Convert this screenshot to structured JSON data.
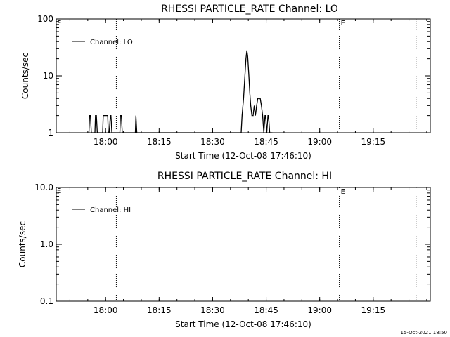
{
  "chart_data": [
    {
      "type": "line",
      "title": "RHESSI PARTICLE_RATE Channel: LO",
      "xlabel": "Start Time (12-Oct-08 17:46:10)",
      "ylabel": "Counts/sec",
      "y_scale": "log",
      "ylim": [
        1,
        100
      ],
      "xlim": [
        "17:46:10",
        "19:31:00"
      ],
      "x_ticks": [
        "18:00",
        "18:15",
        "18:30",
        "18:45",
        "19:00",
        "19:15"
      ],
      "y_ticks": [
        "1",
        "10",
        "100"
      ],
      "legend": "top-left",
      "series": [
        {
          "name": "Channel: LO",
          "x": [
            "17:55:20",
            "17:55:30",
            "17:55:45",
            "17:56:00",
            "17:56:10",
            "17:57:00",
            "17:57:10",
            "17:57:25",
            "17:57:40",
            "17:57:50",
            "17:59:10",
            "17:59:20",
            "17:59:35",
            "18:00:35",
            "18:00:45",
            "18:01:00",
            "18:01:20",
            "18:01:30",
            "18:01:45",
            "18:02:00",
            "18:04:00",
            "18:04:10",
            "18:04:25",
            "18:04:40",
            "18:08:20",
            "18:08:30",
            "18:08:45",
            "18:38:00",
            "18:38:15",
            "18:38:40",
            "18:39:00",
            "18:39:20",
            "18:39:35",
            "18:39:50",
            "18:40:10",
            "18:40:25",
            "18:40:40",
            "18:41:00",
            "18:41:20",
            "18:41:40",
            "18:42:00",
            "18:42:20",
            "18:42:40",
            "18:43:00",
            "18:43:20",
            "18:43:40",
            "18:44:00",
            "18:44:20",
            "18:44:40",
            "18:44:50",
            "18:45:10",
            "18:45:30",
            "18:45:40",
            "18:46:00",
            "18:46:20",
            "18:46:30",
            "18:46:45"
          ],
          "y": [
            1,
            2,
            2,
            1,
            1,
            1,
            2,
            2,
            1,
            1,
            1,
            2,
            2,
            2,
            1,
            1,
            2,
            2,
            1,
            1,
            1,
            2,
            2,
            1,
            1,
            2,
            1,
            1,
            2,
            4,
            9,
            20,
            28,
            22,
            10,
            5,
            3,
            2,
            2,
            3,
            2,
            3,
            4,
            4,
            4,
            3,
            2,
            1,
            2,
            2,
            1,
            2,
            2,
            1,
            1,
            1,
            1
          ]
        }
      ],
      "markers": [
        {
          "label": "",
          "x": "18:03:00"
        },
        {
          "label": "E",
          "x": "19:05:30"
        },
        {
          "label": "",
          "x": "19:27:00"
        }
      ],
      "corner_label": "E"
    },
    {
      "type": "line",
      "title": "RHESSI PARTICLE_RATE Channel: HI",
      "xlabel": "Start Time (12-Oct-08 17:46:10)",
      "ylabel": "Counts/sec",
      "y_scale": "log",
      "ylim": [
        0.1,
        10.0
      ],
      "xlim": [
        "17:46:10",
        "19:31:00"
      ],
      "x_ticks": [
        "18:00",
        "18:15",
        "18:30",
        "18:45",
        "19:00",
        "19:15"
      ],
      "y_ticks": [
        "0.1",
        "1.0",
        "10.0"
      ],
      "legend": "top-left",
      "series": [
        {
          "name": "Channel: HI",
          "x": [],
          "y": []
        }
      ],
      "markers": [
        {
          "label": "",
          "x": "18:03:00"
        },
        {
          "label": "E",
          "x": "19:05:30"
        },
        {
          "label": "",
          "x": "19:27:00"
        }
      ],
      "corner_label": "E"
    }
  ],
  "footer": {
    "timestamp": "15-Oct-2021 18:50"
  }
}
